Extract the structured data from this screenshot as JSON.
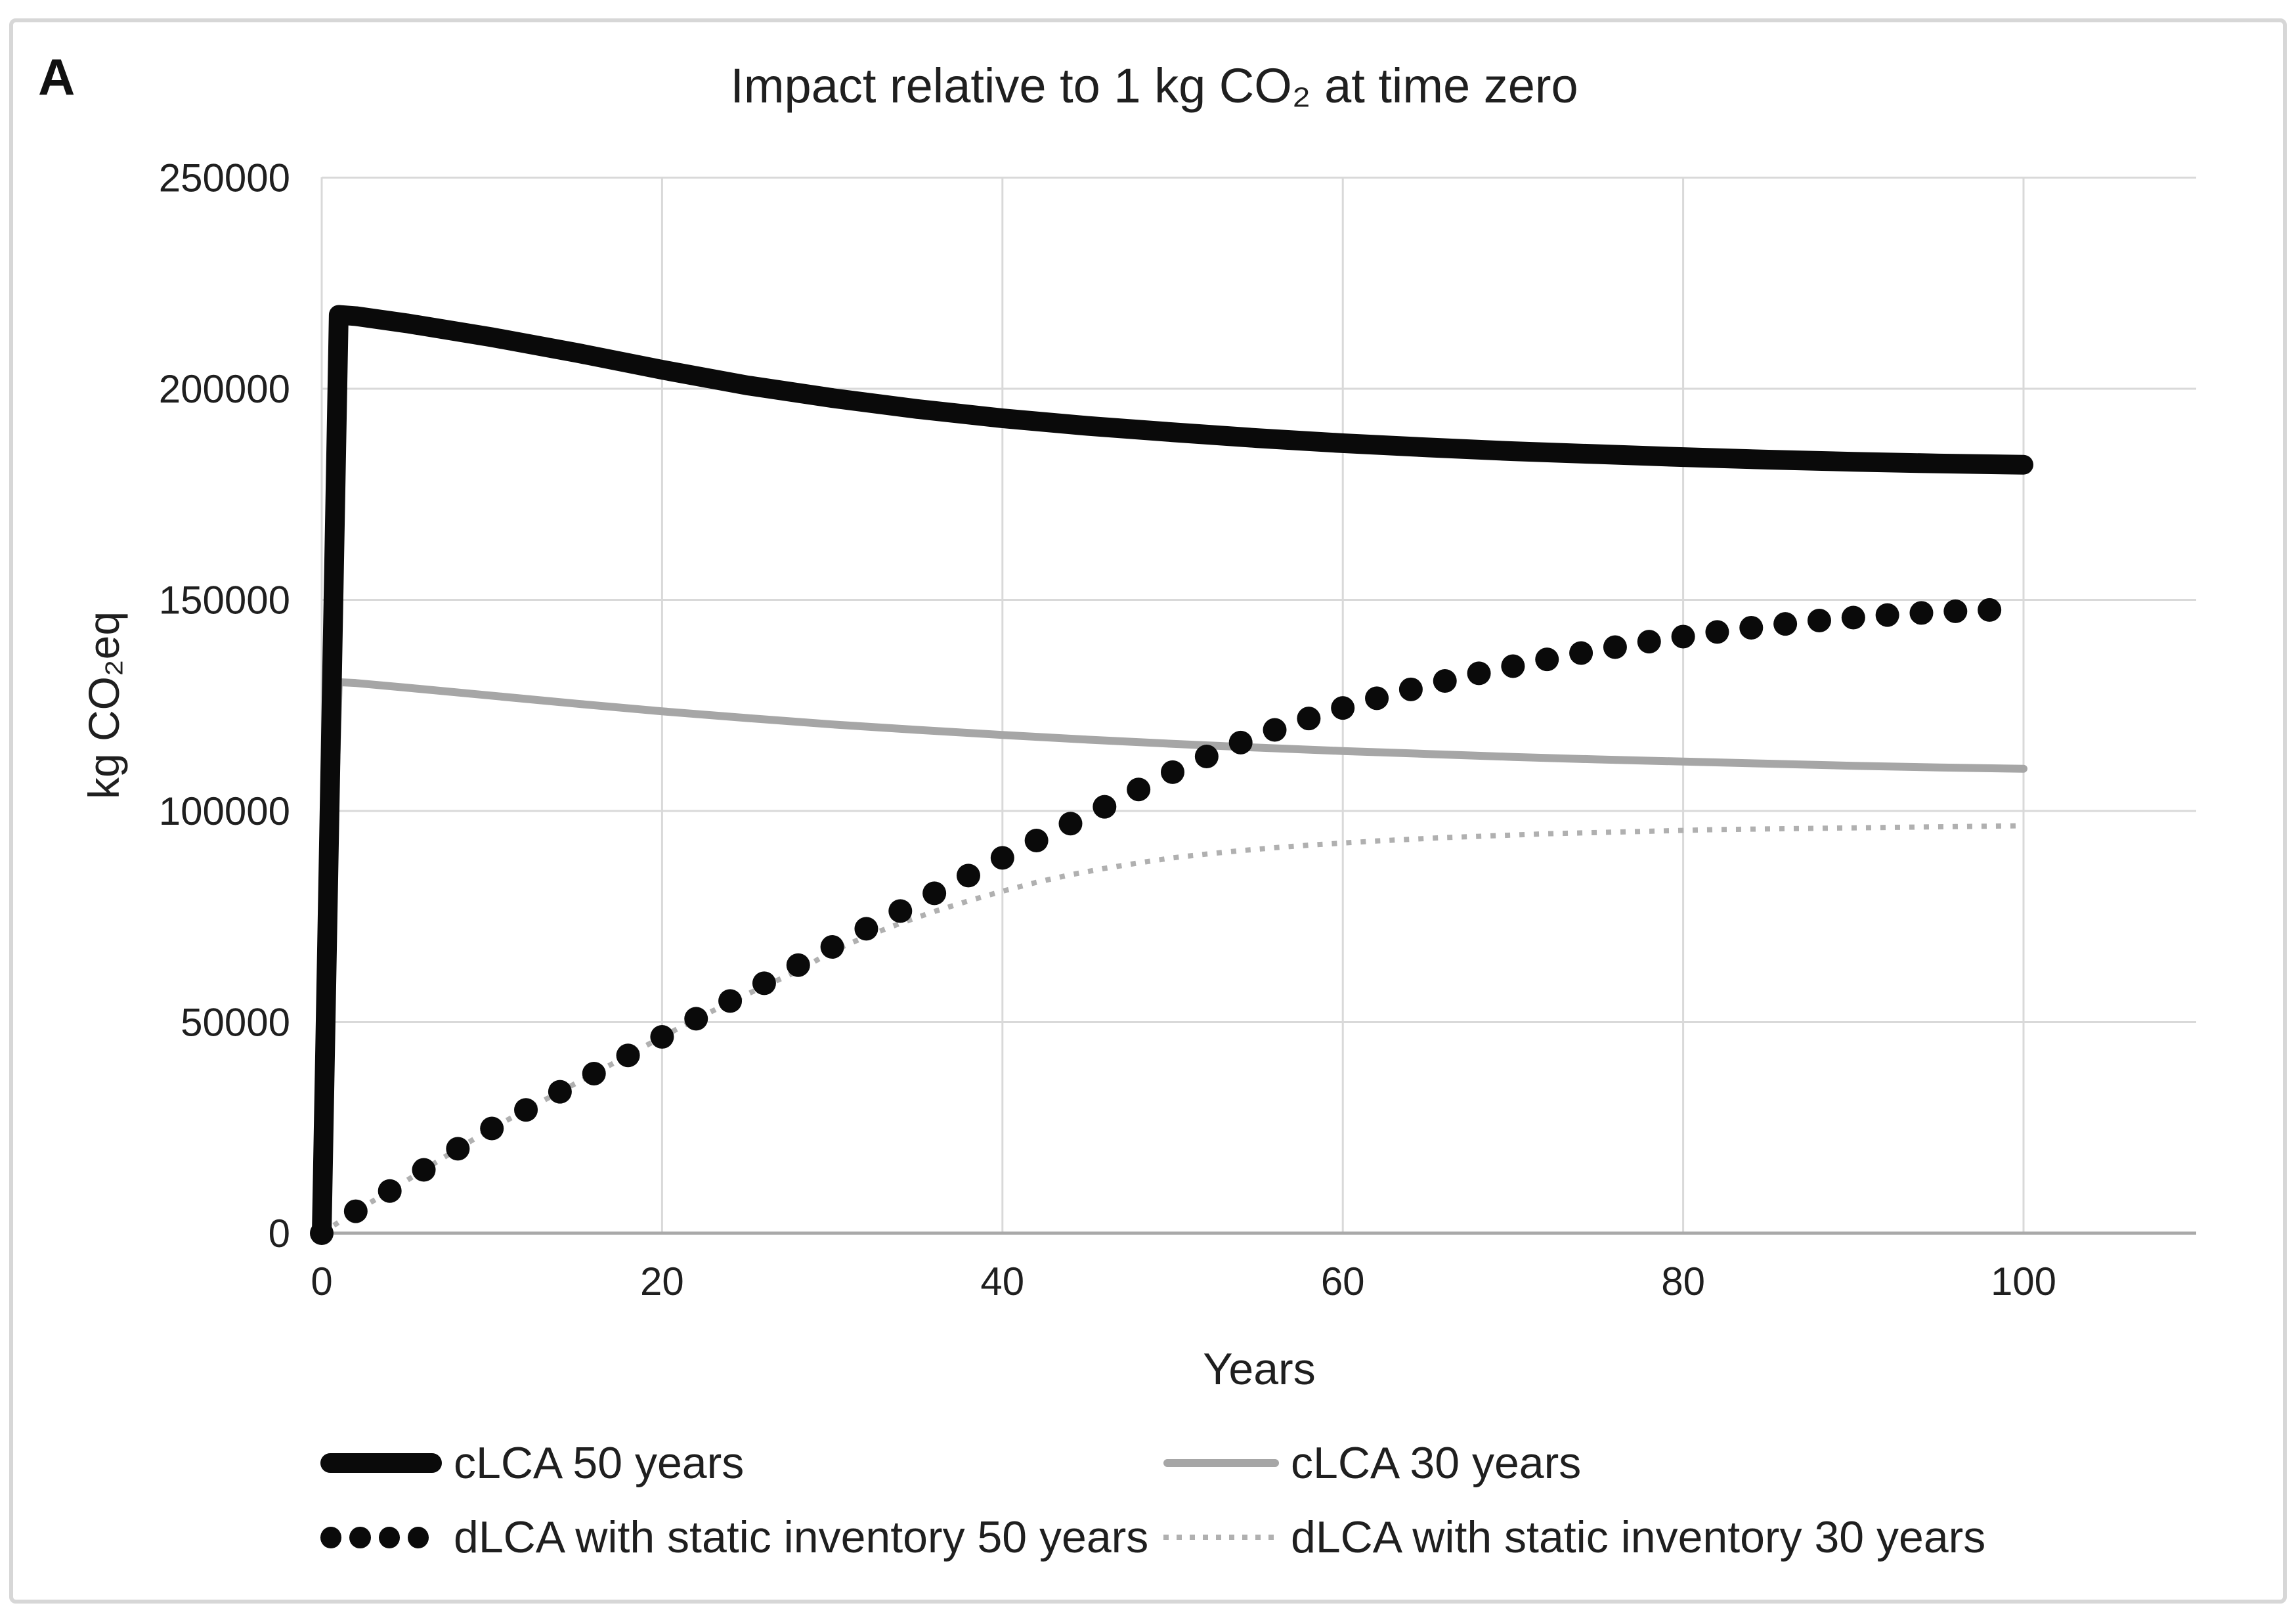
{
  "figure": {
    "panel_label": "A"
  },
  "colors": {
    "black_series": "#0a0a0a",
    "gray_series": "#a6a6a6",
    "dotted_series": "#b0b0b0",
    "gridline": "#d9d9d9",
    "axis_line": "#a9a9a9",
    "text": "#1f1f1f",
    "figure_border": "#d7d7d7"
  },
  "chart_data": {
    "type": "line",
    "title": "Impact relative to 1 kg CO₂ at time zero",
    "xlabel": "Years",
    "ylabel": "kg CO₂eq",
    "xlim": [
      0,
      110
    ],
    "ylim": [
      0,
      250000
    ],
    "x_ticks": [
      0,
      20,
      40,
      60,
      80,
      100
    ],
    "y_ticks": [
      0,
      50000,
      100000,
      150000,
      200000,
      250000
    ],
    "grid": true,
    "legend_position": "bottom",
    "series": [
      {
        "id": "clca_50",
        "name": "cLCA 50 years",
        "style": "thick-solid",
        "color": "#0a0a0a",
        "line_width": 30,
        "x": [
          0,
          1,
          2,
          5,
          10,
          15,
          20,
          25,
          30,
          35,
          40,
          45,
          50,
          55,
          60,
          65,
          70,
          75,
          80,
          85,
          90,
          95,
          100
        ],
        "values": [
          0,
          217500,
          217200,
          215500,
          212200,
          208500,
          204500,
          200800,
          197800,
          195200,
          193000,
          191200,
          189700,
          188300,
          187100,
          186100,
          185200,
          184500,
          183800,
          183200,
          182700,
          182300,
          182000
        ]
      },
      {
        "id": "clca_30",
        "name": "cLCA 30 years",
        "style": "solid",
        "color": "#a6a6a6",
        "line_width": 12,
        "x": [
          0,
          1,
          2,
          5,
          10,
          15,
          20,
          25,
          30,
          35,
          40,
          45,
          50,
          55,
          60,
          65,
          70,
          75,
          80,
          85,
          90,
          95,
          100
        ],
        "values": [
          0,
          130500,
          130300,
          129200,
          127300,
          125400,
          123600,
          122000,
          120500,
          119200,
          118000,
          116900,
          115900,
          115000,
          114200,
          113500,
          112800,
          112200,
          111700,
          111200,
          110700,
          110300,
          110000
        ]
      },
      {
        "id": "dlca_static_50",
        "name": "dLCA with static inventory 50 years",
        "style": "dots",
        "color": "#0a0a0a",
        "marker_radius": 18,
        "x": [
          0,
          2,
          4,
          6,
          8,
          10,
          12,
          14,
          16,
          18,
          20,
          22,
          24,
          26,
          28,
          30,
          32,
          34,
          36,
          38,
          40,
          42,
          44,
          46,
          48,
          50,
          52,
          54,
          56,
          58,
          60,
          62,
          64,
          66,
          68,
          70,
          72,
          74,
          76,
          78,
          80,
          82,
          84,
          86,
          88,
          90,
          92,
          94,
          96,
          98
        ],
        "values": [
          0,
          5200,
          10000,
          15000,
          20000,
          24800,
          29200,
          33500,
          37800,
          42100,
          46500,
          50800,
          55000,
          59200,
          63500,
          67800,
          72100,
          76300,
          80500,
          84700,
          88900,
          93000,
          97000,
          101000,
          105100,
          109200,
          112900,
          116200,
          119200,
          121900,
          124400,
          126700,
          128800,
          130800,
          132600,
          134300,
          135900,
          137400,
          138800,
          140100,
          141300,
          142400,
          143400,
          144300,
          145100,
          145800,
          146400,
          146900,
          147300,
          147600
        ]
      },
      {
        "id": "dlca_static_30",
        "name": "dLCA with static inventory 30 years",
        "style": "dotted",
        "color": "#b0b0b0",
        "line_width": 8,
        "x": [
          0,
          2,
          4,
          6,
          8,
          10,
          12,
          14,
          16,
          18,
          20,
          22,
          24,
          26,
          28,
          30,
          32,
          34,
          36,
          38,
          40,
          42,
          44,
          46,
          48,
          50,
          52,
          54,
          56,
          58,
          60,
          62,
          64,
          66,
          68,
          70,
          72,
          74,
          76,
          78,
          80,
          82,
          84,
          86,
          88,
          90,
          92,
          94,
          96,
          98,
          100
        ],
        "values": [
          0,
          5200,
          10000,
          15000,
          20000,
          24800,
          29200,
          33500,
          37800,
          42100,
          46500,
          50700,
          54700,
          58500,
          62100,
          66800,
          70300,
          73400,
          76200,
          78700,
          81000,
          83100,
          84900,
          86400,
          87700,
          88900,
          89800,
          90600,
          91300,
          91900,
          92400,
          92900,
          93300,
          93700,
          94000,
          94300,
          94600,
          94800,
          95000,
          95200,
          95400,
          95600,
          95700,
          95800,
          95900,
          96000,
          96100,
          96200,
          96300,
          96400,
          96500
        ]
      }
    ]
  }
}
